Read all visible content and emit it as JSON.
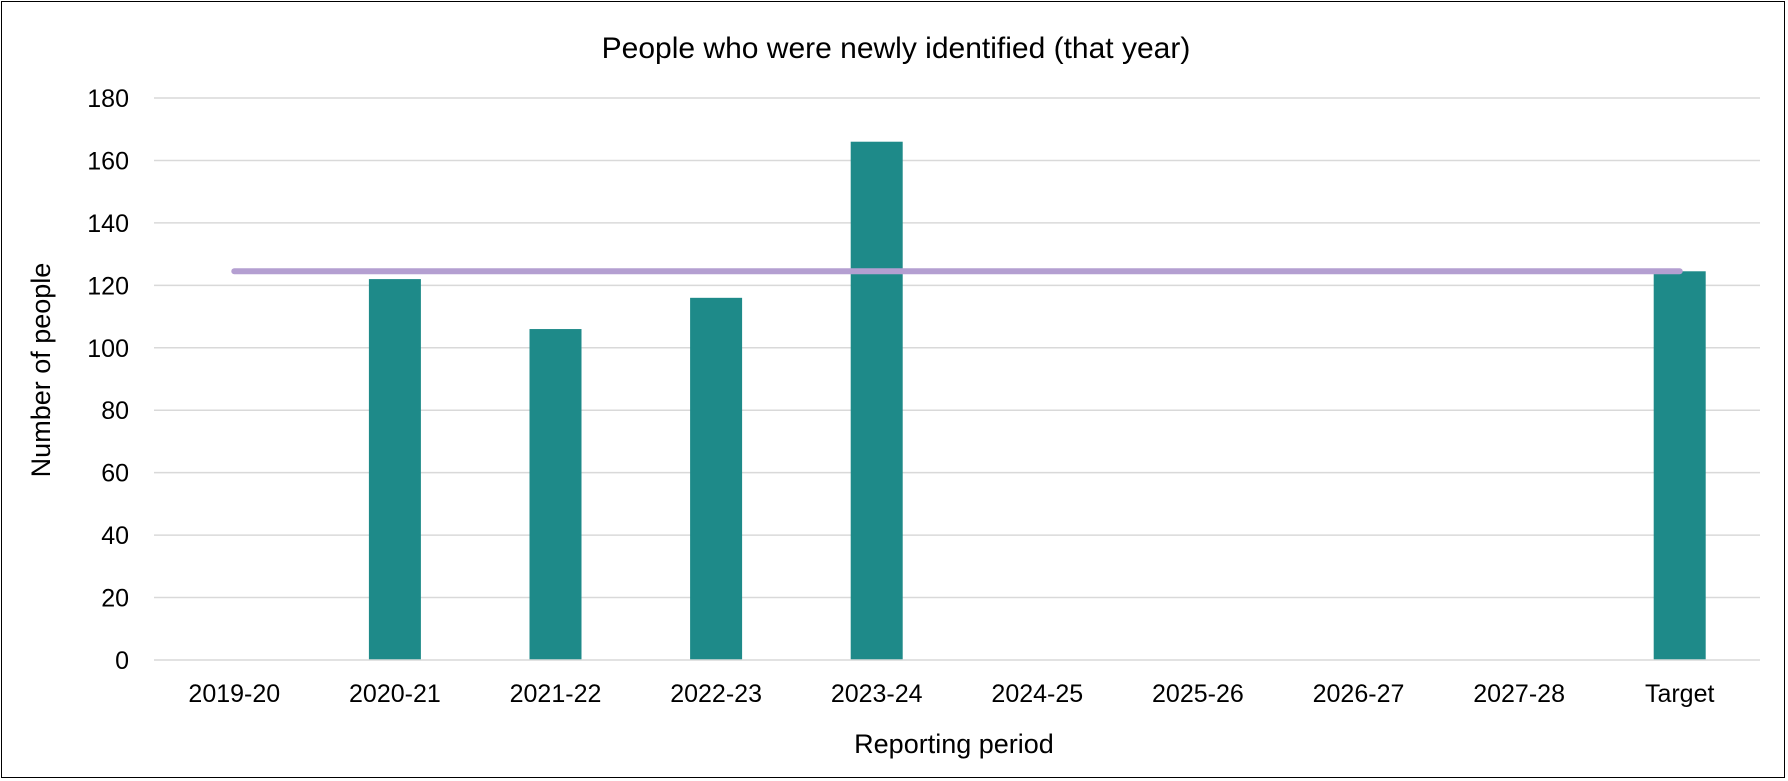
{
  "chart_data": {
    "type": "bar",
    "title": "People who were newly identified (that year)",
    "xlabel": "Reporting period",
    "ylabel": "Number of people",
    "ylim": [
      0,
      180
    ],
    "yticks": [
      "0",
      "20",
      "40",
      "60",
      "80",
      "100",
      "120",
      "140",
      "160",
      "180"
    ],
    "categories": [
      "2019-20",
      "2020-21",
      "2021-22",
      "2022-23",
      "2023-24",
      "2024-25",
      "2025-26",
      "2026-27",
      "2027-28",
      "Target"
    ],
    "series": [
      {
        "values": [
          null,
          122,
          106,
          116,
          166,
          null,
          null,
          null,
          null,
          124.5
        ]
      }
    ],
    "target_line": {
      "value": 124.5
    },
    "grid": true,
    "legend": "none",
    "colors": {
      "bar": "#1e8a89",
      "target_line": "#b49fd1",
      "grid": "#d9d9d9"
    }
  }
}
